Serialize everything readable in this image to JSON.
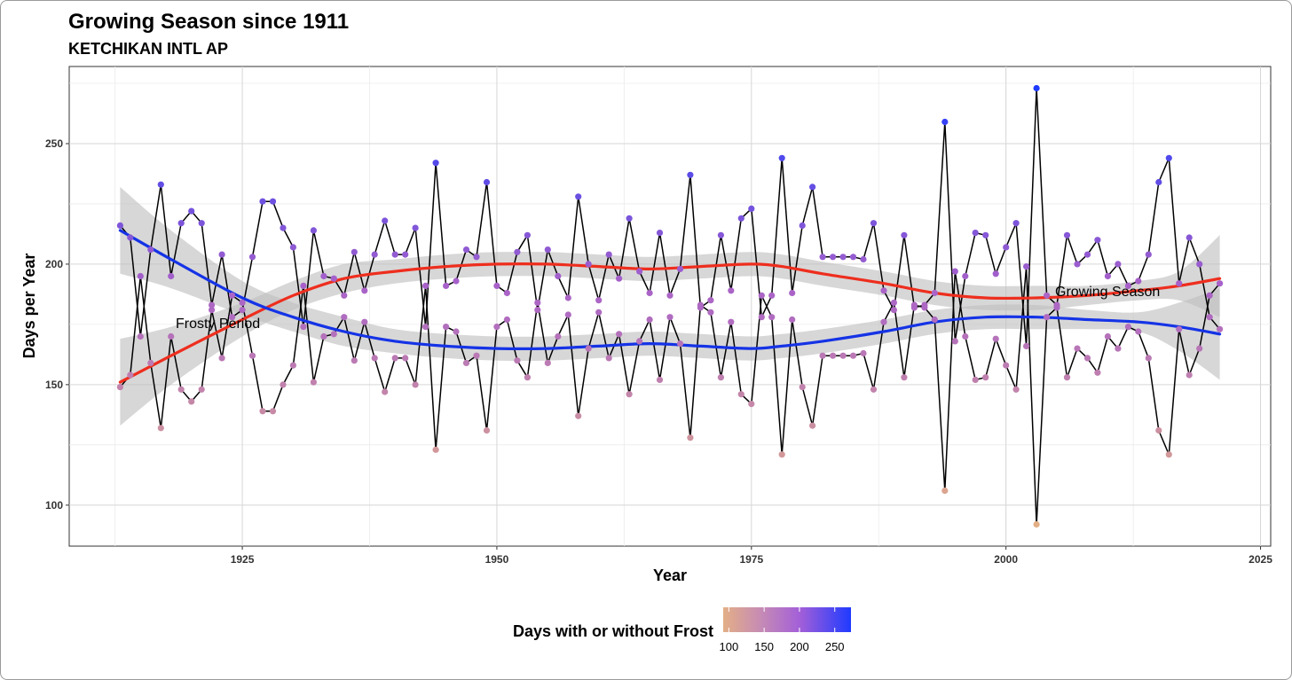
{
  "chart_data": {
    "type": "line",
    "title": "Growing Season since 1911",
    "subtitle": "KETCHIKAN INTL AP",
    "xlabel": "Year",
    "ylabel": "Days per Year",
    "xlim": [
      1908,
      2026
    ],
    "ylim": [
      83,
      282
    ],
    "x_ticks": [
      1925,
      1950,
      1975,
      2000,
      2025
    ],
    "y_ticks": [
      100,
      150,
      200,
      250
    ],
    "grid": true,
    "legend_title": "Days with or without Frost",
    "legend_ticks": [
      100,
      150,
      200,
      250
    ],
    "legend_range": [
      92,
      273
    ],
    "legend_position": "bottom",
    "annotations": [
      {
        "text": "Frosty Period",
        "x": 1924,
        "y": 175
      },
      {
        "text": "Growing Season",
        "x": 1999,
        "y": 187
      }
    ],
    "colors": {
      "low": "#E3AF86",
      "mid": "#A861C9",
      "high": "#1F3BFF",
      "growing_smooth": "#EE2E1E",
      "frosty_smooth": "#1533E6",
      "band": "#BEBEBE",
      "line": "#000000"
    },
    "series": [
      {
        "name": "Growing Season",
        "x": [
          1913,
          1914,
          1915,
          1916,
          1917,
          1918,
          1919,
          1920,
          1921,
          1922,
          1923,
          1924,
          1925,
          1926,
          1927,
          1928,
          1929,
          1930,
          1931,
          1932,
          1933,
          1934,
          1935,
          1936,
          1937,
          1938,
          1939,
          1940,
          1941,
          1942,
          1943,
          1944,
          1945,
          1946,
          1947,
          1948,
          1949,
          1950,
          1951,
          1952,
          1953,
          1954,
          1955,
          1956,
          1957,
          1958,
          1959,
          1960,
          1961,
          1962,
          1963,
          1964,
          1965,
          1966,
          1967,
          1968,
          1969,
          1970,
          1971,
          1972,
          1973,
          1974,
          1975,
          1976,
          1977,
          1978,
          1979,
          1980,
          1981,
          1982,
          1983,
          1984,
          1985,
          1986,
          1987,
          1988,
          1989,
          1990,
          1991,
          1992,
          1993,
          1994,
          1995,
          1996,
          1997,
          1998,
          1999,
          2000,
          2001,
          2002,
          2003,
          2004,
          2005,
          2006,
          2007,
          2008,
          2009,
          2010,
          2011,
          2012,
          2013,
          2014,
          2015,
          2016,
          2017,
          2018,
          2019,
          2020,
          2021
        ],
        "y": [
          149,
          154,
          195,
          159,
          132,
          170,
          148,
          143,
          148,
          181,
          161,
          187,
          184,
          162,
          139,
          139,
          150,
          158,
          191,
          151,
          170,
          171,
          178,
          160,
          176,
          161,
          147,
          161,
          161,
          150,
          191,
          123,
          174,
          172,
          159,
          162,
          131,
          174,
          177,
          160,
          153,
          184,
          159,
          170,
          179,
          137,
          165,
          180,
          161,
          171,
          146,
          168,
          177,
          152,
          178,
          167,
          128,
          183,
          180,
          153,
          176,
          146,
          142,
          187,
          178,
          121,
          177,
          149,
          133,
          162,
          162,
          162,
          162,
          163,
          148,
          176,
          184,
          153,
          183,
          182,
          177,
          106,
          197,
          170,
          152,
          153,
          169,
          158,
          148,
          199,
          92,
          178,
          182,
          153,
          165,
          161,
          155,
          170,
          165,
          174,
          172,
          161,
          131,
          121,
          173,
          154,
          165,
          187,
          192
        ]
      },
      {
        "name": "Frosty Period",
        "x": [
          1913,
          1914,
          1915,
          1916,
          1917,
          1918,
          1919,
          1920,
          1921,
          1922,
          1923,
          1924,
          1925,
          1926,
          1927,
          1928,
          1929,
          1930,
          1931,
          1932,
          1933,
          1934,
          1935,
          1936,
          1937,
          1938,
          1939,
          1940,
          1941,
          1942,
          1943,
          1944,
          1945,
          1946,
          1947,
          1948,
          1949,
          1950,
          1951,
          1952,
          1953,
          1954,
          1955,
          1956,
          1957,
          1958,
          1959,
          1960,
          1961,
          1962,
          1963,
          1964,
          1965,
          1966,
          1967,
          1968,
          1969,
          1970,
          1971,
          1972,
          1973,
          1974,
          1975,
          1976,
          1977,
          1978,
          1979,
          1980,
          1981,
          1982,
          1983,
          1984,
          1985,
          1986,
          1987,
          1988,
          1989,
          1990,
          1991,
          1992,
          1993,
          1994,
          1995,
          1996,
          1997,
          1998,
          1999,
          2000,
          2001,
          2002,
          2003,
          2004,
          2005,
          2006,
          2007,
          2008,
          2009,
          2010,
          2011,
          2012,
          2013,
          2014,
          2015,
          2016,
          2017,
          2018,
          2019,
          2020,
          2021
        ],
        "y": [
          216,
          211,
          170,
          206,
          233,
          195,
          217,
          222,
          217,
          183,
          204,
          178,
          181,
          203,
          226,
          226,
          215,
          207,
          174,
          214,
          195,
          194,
          187,
          205,
          189,
          204,
          218,
          204,
          204,
          215,
          174,
          242,
          191,
          193,
          206,
          203,
          234,
          191,
          188,
          205,
          212,
          181,
          206,
          195,
          186,
          228,
          200,
          185,
          204,
          194,
          219,
          197,
          188,
          213,
          187,
          198,
          237,
          182,
          185,
          212,
          189,
          219,
          223,
          178,
          187,
          244,
          188,
          216,
          232,
          203,
          203,
          203,
          203,
          202,
          217,
          189,
          181,
          212,
          182,
          183,
          188,
          259,
          168,
          195,
          213,
          212,
          196,
          207,
          217,
          166,
          273,
          187,
          183,
          212,
          200,
          204,
          210,
          195,
          200,
          191,
          193,
          204,
          234,
          244,
          192,
          211,
          200,
          178,
          173
        ]
      }
    ],
    "smooth": [
      {
        "name": "Growing Season",
        "x": [
          1913,
          1918,
          1925,
          1930,
          1935,
          1940,
          1945,
          1950,
          1955,
          1960,
          1965,
          1970,
          1975,
          1978,
          1982,
          1988,
          1993,
          1998,
          2003,
          2008,
          2013,
          2017,
          2021
        ],
        "y": [
          151,
          162,
          177,
          187,
          194,
          197,
          199,
          200,
          200,
          199,
          198,
          199,
          200,
          199,
          196,
          192,
          188,
          186,
          186,
          187,
          189,
          191,
          194
        ],
        "lo": [
          133,
          150,
          170,
          181,
          188,
          192,
          194,
          195,
          195,
          194,
          193,
          194,
          195,
          194,
          191,
          187,
          183,
          181,
          181,
          183,
          185,
          185,
          178
        ],
        "hi": [
          169,
          174,
          184,
          193,
          200,
          202,
          204,
          205,
          205,
          204,
          203,
          204,
          205,
          204,
          201,
          197,
          193,
          191,
          191,
          191,
          193,
          197,
          212
        ]
      },
      {
        "name": "Frosty Period",
        "x": [
          1913,
          1918,
          1925,
          1930,
          1935,
          1940,
          1945,
          1950,
          1955,
          1960,
          1965,
          1970,
          1975,
          1978,
          1982,
          1988,
          1993,
          1998,
          2003,
          2008,
          2013,
          2017,
          2021
        ],
        "y": [
          214,
          202,
          186,
          178,
          172,
          168,
          166,
          165,
          165,
          166,
          167,
          166,
          165,
          166,
          168,
          172,
          176,
          178,
          178,
          177,
          176,
          174,
          171
        ],
        "lo": [
          196,
          190,
          179,
          172,
          166,
          163,
          161,
          160,
          160,
          161,
          162,
          161,
          160,
          161,
          163,
          167,
          171,
          173,
          173,
          173,
          172,
          164,
          152
        ],
        "hi": [
          232,
          214,
          193,
          184,
          178,
          173,
          171,
          170,
          170,
          171,
          172,
          171,
          170,
          171,
          173,
          177,
          181,
          183,
          183,
          181,
          180,
          184,
          190
        ]
      }
    ]
  }
}
